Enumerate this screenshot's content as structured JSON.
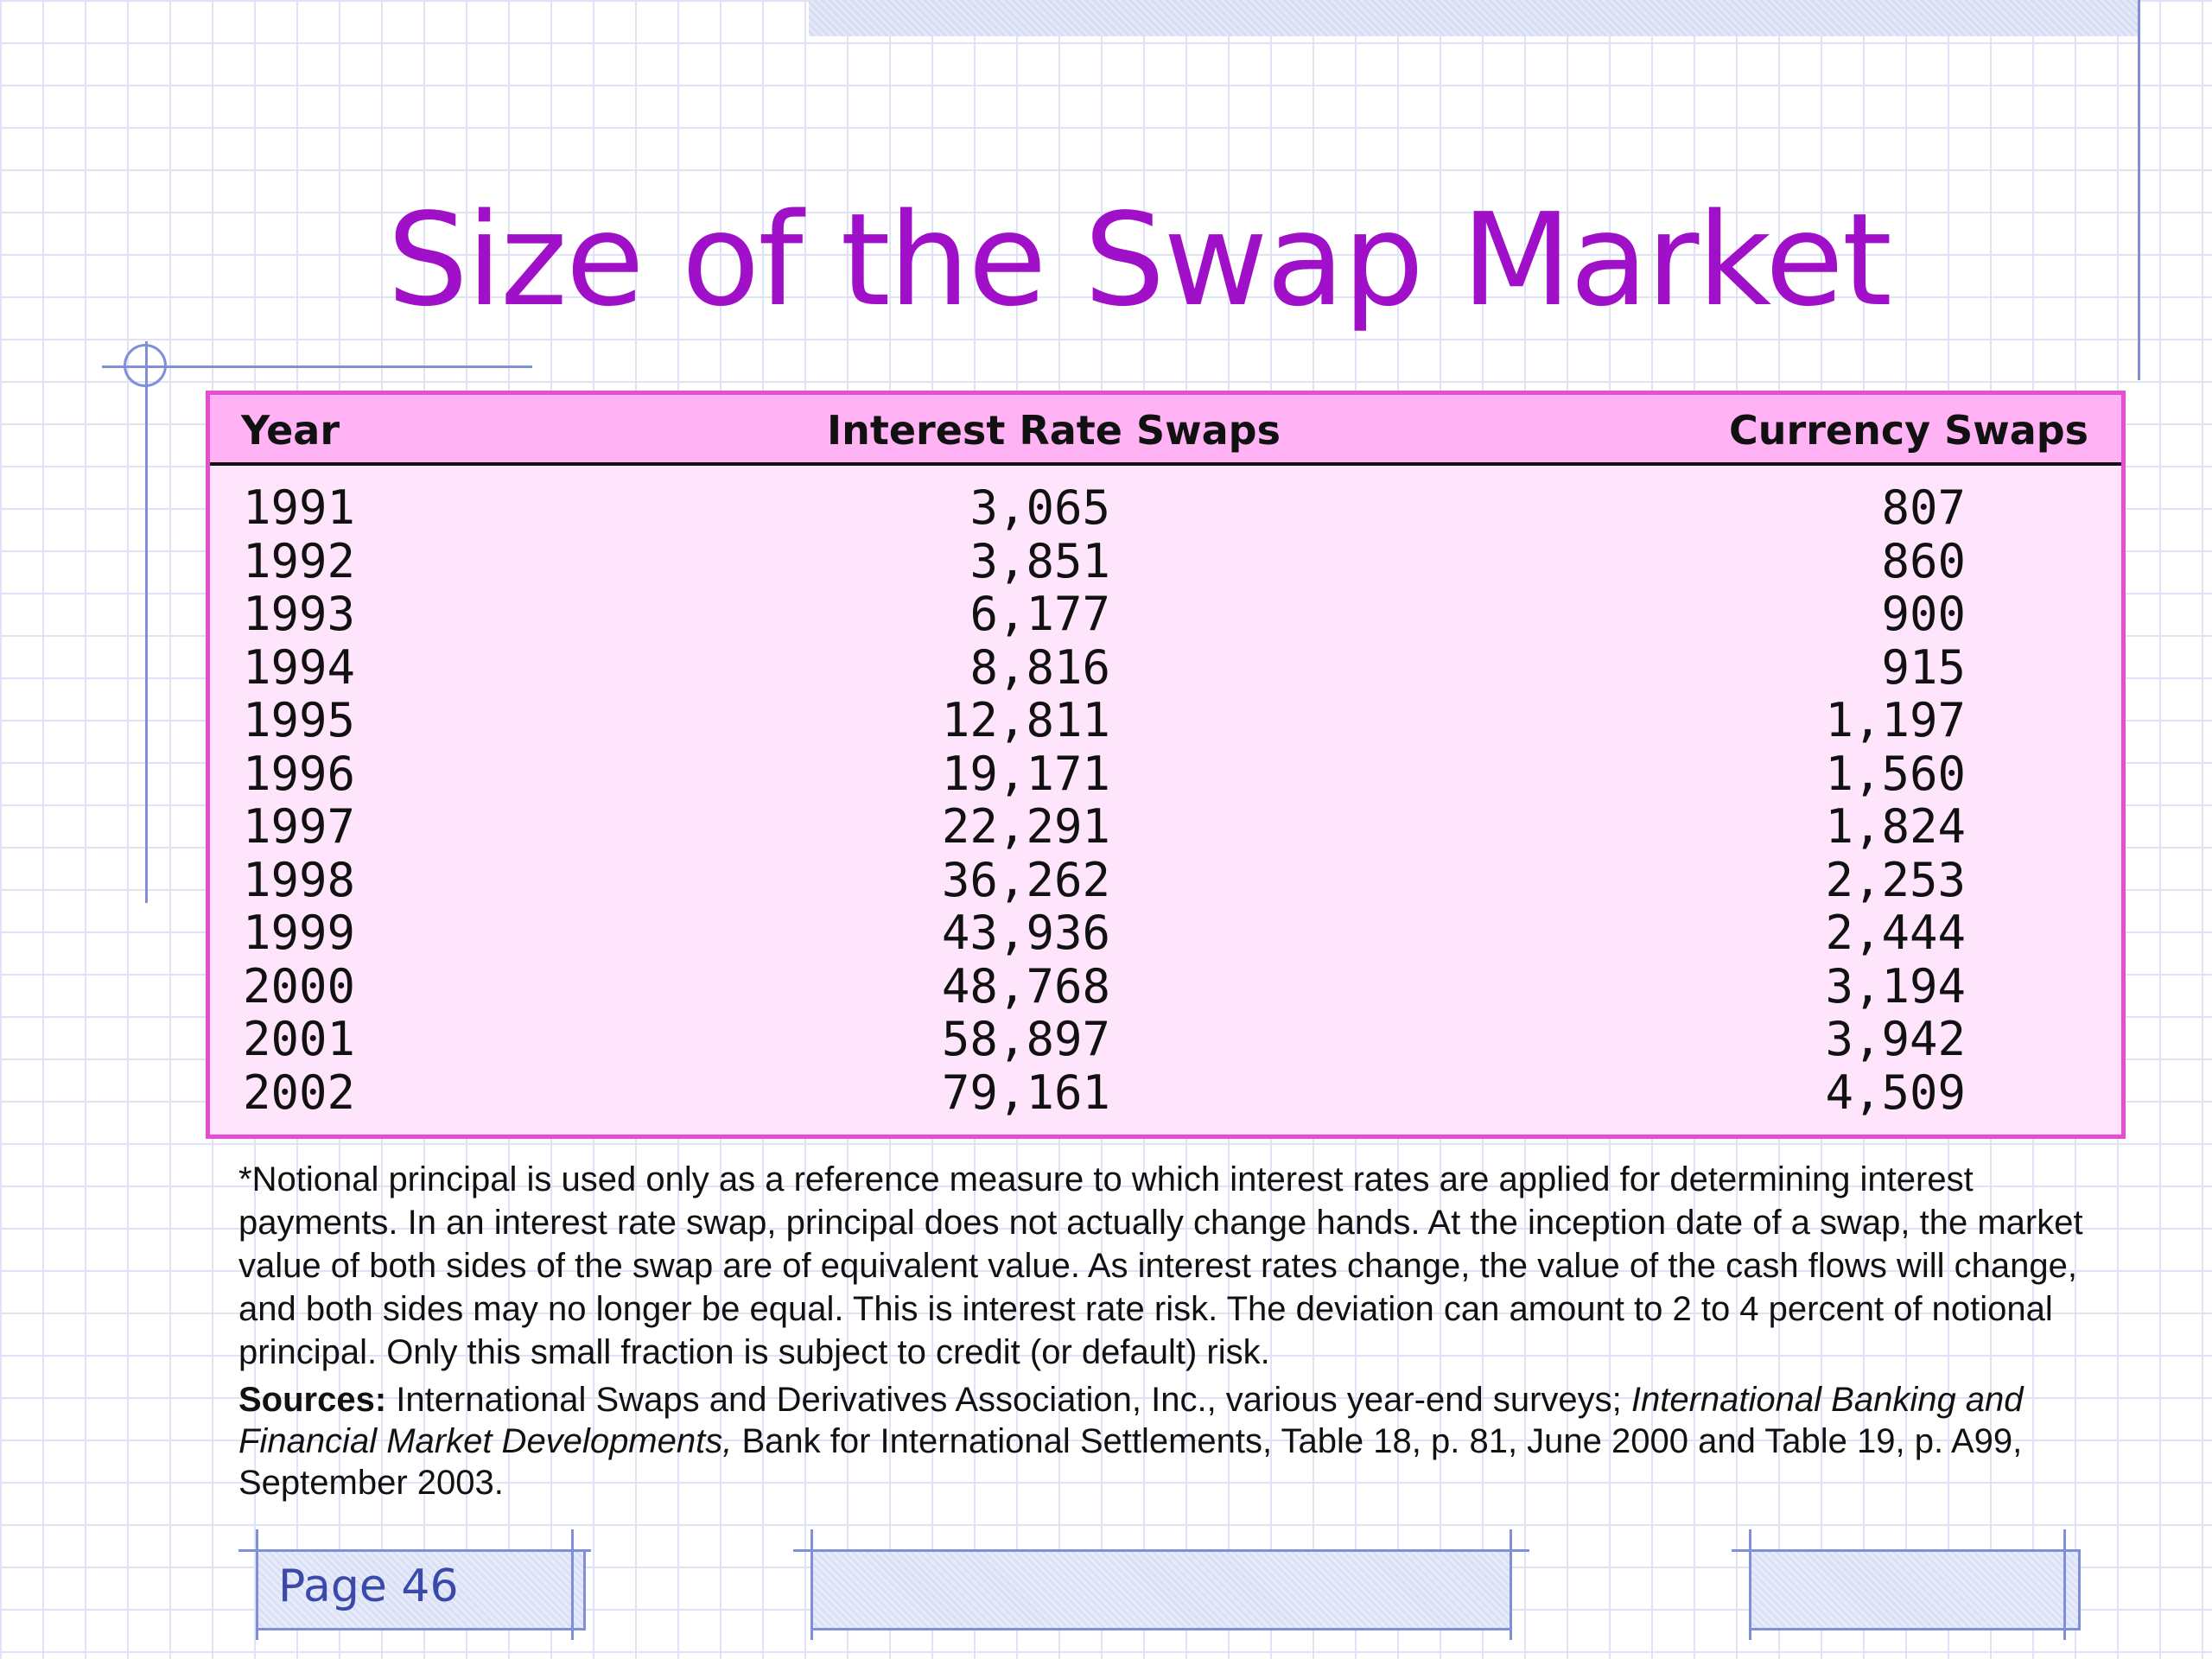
{
  "title": "Size of the Swap Market",
  "table": {
    "headers": {
      "year": "Year",
      "interest_rate_swaps": "Interest Rate Swaps",
      "currency_swaps": "Currency Swaps"
    },
    "rows": [
      {
        "year": "1991",
        "interest_rate_swaps": "3,065",
        "currency_swaps": "807"
      },
      {
        "year": "1992",
        "interest_rate_swaps": "3,851",
        "currency_swaps": "860"
      },
      {
        "year": "1993",
        "interest_rate_swaps": "6,177",
        "currency_swaps": "900"
      },
      {
        "year": "1994",
        "interest_rate_swaps": "8,816",
        "currency_swaps": "915"
      },
      {
        "year": "1995",
        "interest_rate_swaps": "12,811",
        "currency_swaps": "1,197"
      },
      {
        "year": "1996",
        "interest_rate_swaps": "19,171",
        "currency_swaps": "1,560"
      },
      {
        "year": "1997",
        "interest_rate_swaps": "22,291",
        "currency_swaps": "1,824"
      },
      {
        "year": "1998",
        "interest_rate_swaps": "36,262",
        "currency_swaps": "2,253"
      },
      {
        "year": "1999",
        "interest_rate_swaps": "43,936",
        "currency_swaps": "2,444"
      },
      {
        "year": "2000",
        "interest_rate_swaps": "48,768",
        "currency_swaps": "3,194"
      },
      {
        "year": "2001",
        "interest_rate_swaps": "58,897",
        "currency_swaps": "3,942"
      },
      {
        "year": "2002",
        "interest_rate_swaps": "79,161",
        "currency_swaps": "4,509"
      }
    ]
  },
  "footnote": "*Notional principal is used only as a reference measure to which interest rates are applied for determining interest payments. In an interest rate swap, principal does not actually change hands. At the inception date of a swap, the market value of both sides of the swap are of equivalent value. As interest rates change, the value of the cash flows will change, and both sides may no longer be equal. This is interest rate risk. The deviation can amount to 2 to 4 percent of notional principal. Only this small fraction is subject to credit (or default) risk.",
  "sources": {
    "label": "Sources:",
    "text_1": " International Swaps and Derivatives Association, Inc., various year-end surveys; ",
    "italic": "International Banking and Financial Market Developments,",
    "text_2": " Bank for International Settlements, Table 18, p. 81, June 2000 and Table 19, p. A99, September 2003."
  },
  "footer": {
    "page_label": "Page 46"
  },
  "colors": {
    "title": "#a010c8",
    "table_border": "#e64ed2",
    "table_header_bg": "#ffb3f4",
    "table_body_bg": "#ffe5fb",
    "accent_lines": "#8090d8"
  }
}
